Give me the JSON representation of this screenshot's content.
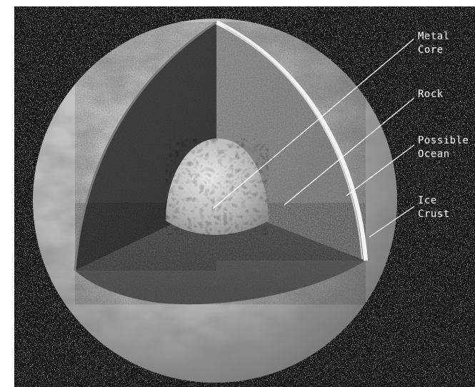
{
  "diagram": {
    "labels": {
      "metal_core": [
        "Metal",
        "Core"
      ],
      "rock": [
        "Rock"
      ],
      "possible_ocean": [
        "Possible",
        "Ocean"
      ],
      "ice_crust": [
        "Ice",
        "Crust"
      ]
    }
  },
  "colors": {
    "background": "#151515",
    "ice_surface": "#b9b9b9",
    "rock_layer": "#5a5a5a",
    "core": "#bdbdbd",
    "label_text": "#ffffff"
  }
}
